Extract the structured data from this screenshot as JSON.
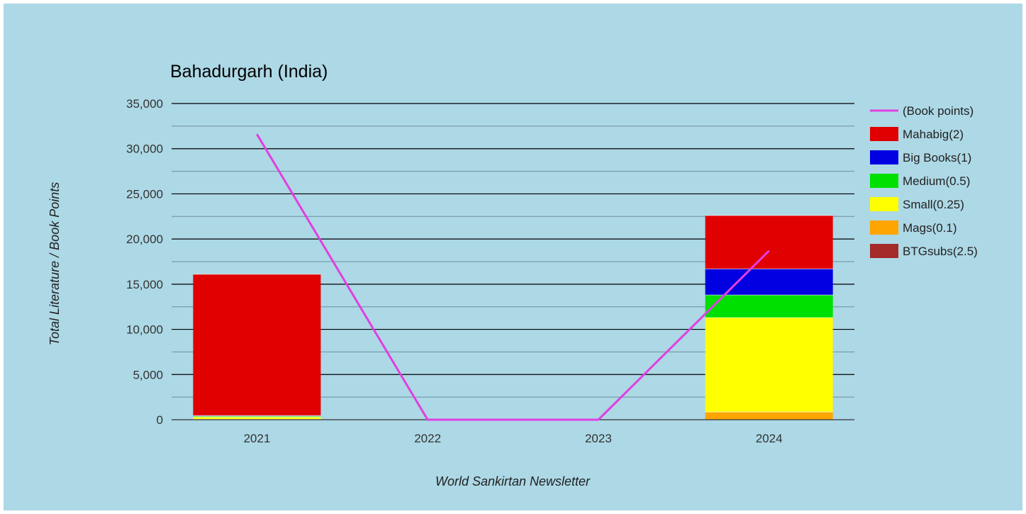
{
  "chart_data": {
    "type": "bar",
    "stacked": true,
    "title": "Bahadurgarh (India)",
    "xlabel": "World Sankirtan Newsletter",
    "ylabel": "Total Literature / Book Points",
    "categories": [
      "2021",
      "2022",
      "2023",
      "2024"
    ],
    "ylim": [
      0,
      35000
    ],
    "yticks": [
      0,
      5000,
      10000,
      15000,
      20000,
      25000,
      30000,
      35000
    ],
    "ytick_labels": [
      "0",
      "5,000",
      "10,000",
      "15,000",
      "20,000",
      "25,000",
      "30,000",
      "35,000"
    ],
    "grid": true,
    "legend_position": "right",
    "series": [
      {
        "name": "BTGsubs(2.5)",
        "color": "#a52a2a",
        "values": [
          0,
          0,
          0,
          0
        ]
      },
      {
        "name": "Mags(0.1)",
        "color": "#ffa500",
        "values": [
          50,
          0,
          0,
          850
        ]
      },
      {
        "name": "Small(0.25)",
        "color": "#ffff00",
        "values": [
          250,
          0,
          0,
          10450
        ]
      },
      {
        "name": "Medium(0.5)",
        "color": "#00e000",
        "values": [
          100,
          0,
          0,
          2500
        ]
      },
      {
        "name": "Big Books(1)",
        "color": "#0000e0",
        "values": [
          60,
          0,
          0,
          2900
        ]
      },
      {
        "name": "Mahabig(2)",
        "color": "#e00000",
        "values": [
          15640,
          0,
          0,
          5900
        ]
      }
    ],
    "line_series": {
      "name": "(Book points)",
      "color": "#e040e0",
      "values": [
        31600,
        0,
        0,
        18700
      ]
    },
    "legend_order": [
      "(Book points)",
      "Mahabig(2)",
      "Big Books(1)",
      "Medium(0.5)",
      "Small(0.25)",
      "Mags(0.1)",
      "BTGsubs(2.5)"
    ]
  }
}
